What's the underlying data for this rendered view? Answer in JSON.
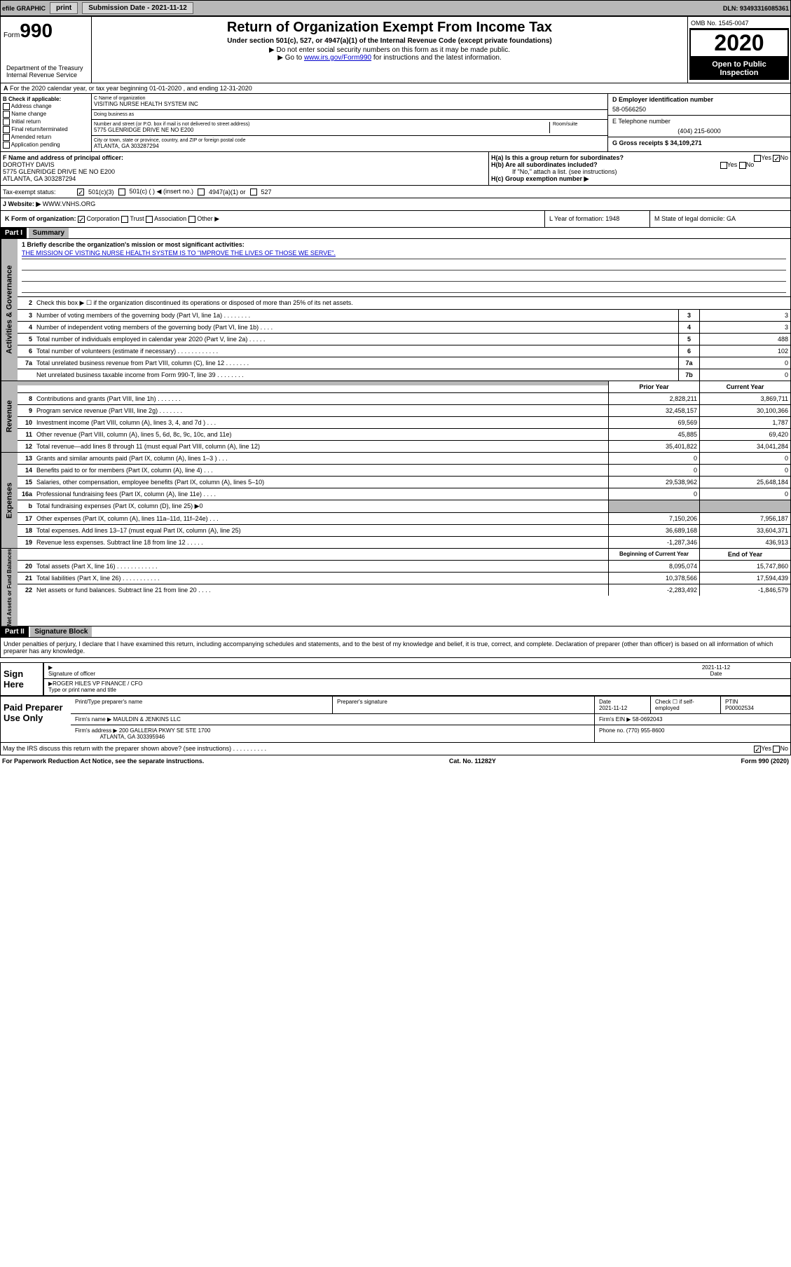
{
  "topbar": {
    "efile_label": "efile GRAPHIC",
    "print_btn": "print",
    "submission_label": "Submission Date - 2021-11-12",
    "dln_label": "DLN: 93493316085361"
  },
  "header": {
    "form_prefix": "Form",
    "form_number": "990",
    "title": "Return of Organization Exempt From Income Tax",
    "subtitle": "Under section 501(c), 527, or 4947(a)(1) of the Internal Revenue Code (except private foundations)",
    "note1": "▶ Do not enter social security numbers on this form as it may be made public.",
    "note2_pre": "▶ Go to ",
    "note2_link": "www.irs.gov/Form990",
    "note2_post": " for instructions and the latest information.",
    "dept": "Department of the Treasury\nInternal Revenue Service",
    "omb": "OMB No. 1545-0047",
    "year": "2020",
    "open_public": "Open to Public Inspection"
  },
  "row_a": "For the 2020 calendar year, or tax year beginning 01-01-2020    , and ending 12-31-2020",
  "checkboxes_b": {
    "label": "B Check if applicable:",
    "items": [
      "Address change",
      "Name change",
      "Initial return",
      "Final return/terminated",
      "Amended return",
      "Application pending"
    ]
  },
  "col_c": {
    "c_label": "C Name of organization",
    "org_name": "VISITING NURSE HEALTH SYSTEM INC",
    "dba_label": "Doing business as",
    "addr_label": "Number and street (or P.O. box if mail is not delivered to street address)",
    "room_label": "Room/suite",
    "addr": "5775 GLENRIDGE DRIVE NE NO E200",
    "city_label": "City or town, state or province, country, and ZIP or foreign postal code",
    "city": "ATLANTA, GA  303287294"
  },
  "col_d": {
    "d_label": "D Employer identification number",
    "ein": "58-0566250",
    "e_label": "E Telephone number",
    "phone": "(404) 215-6000",
    "g_label": "G Gross receipts $ 34,109,271"
  },
  "section_f": {
    "f_label": "F  Name and address of principal officer:",
    "officer_name": "DOROTHY DAVIS",
    "officer_addr1": "5775 GLENRIDGE DRIVE NE NO E200",
    "officer_addr2": "ATLANTA, GA  303287294",
    "ha_label": "H(a)  Is this a group return for subordinates?",
    "hb_label": "H(b)  Are all subordinates included?",
    "hb_note": "If \"No,\" attach a list. (see instructions)",
    "hc_label": "H(c)  Group exemption number ▶",
    "yes": "Yes",
    "no": "No"
  },
  "tax_row": {
    "label": "Tax-exempt status:",
    "opt1": "501(c)(3)",
    "opt2": "501(c) (  ) ◀ (insert no.)",
    "opt3": "4947(a)(1) or",
    "opt4": "527"
  },
  "website_row": {
    "label": "J    Website: ▶",
    "url": "WWW.VNHS.ORG"
  },
  "row_k": {
    "k_label": "K Form of organization:",
    "opts": [
      "Corporation",
      "Trust",
      "Association",
      "Other ▶"
    ],
    "l_label": "L Year of formation: 1948",
    "m_label": "M State of legal domicile: GA"
  },
  "part1": {
    "hdr": "Part I",
    "title": "Summary"
  },
  "governance": {
    "tab": "Activities & Governance",
    "line1_label": "1  Briefly describe the organization's mission or most significant activities:",
    "mission": "THE MISSION OF VISTING NURSE HEALTH SYSTEM IS TO \"IMPROVE THE LIVES OF THOSE WE SERVE\".",
    "line2": "Check this box ▶ ☐  if the organization discontinued its operations or disposed of more than 25% of its net assets.",
    "rows": [
      {
        "n": "3",
        "t": "Number of voting members of the governing body (Part VI, line 1a)   .    .    .    .    .    .    .    .",
        "b": "3",
        "v": "3"
      },
      {
        "n": "4",
        "t": "Number of independent voting members of the governing body (Part VI, line 1b)   .    .    .    .",
        "b": "4",
        "v": "3"
      },
      {
        "n": "5",
        "t": "Total number of individuals employed in calendar year 2020 (Part V, line 2a)   .    .    .    .    .",
        "b": "5",
        "v": "488"
      },
      {
        "n": "6",
        "t": "Total number of volunteers (estimate if necessary)   .    .    .    .    .    .    .    .    .    .    .    .",
        "b": "6",
        "v": "102"
      },
      {
        "n": "7a",
        "t": "Total unrelated business revenue from Part VIII, column (C), line 12   .    .    .    .    .    .    .",
        "b": "7a",
        "v": "0"
      },
      {
        "n": "",
        "t": "Net unrelated business taxable income from Form 990-T, line 39   .    .    .    .    .    .    .    .",
        "b": "7b",
        "v": "0"
      }
    ]
  },
  "revenue": {
    "tab": "Revenue",
    "hdr_prior": "Prior Year",
    "hdr_curr": "Current Year",
    "rows": [
      {
        "n": "8",
        "t": "Contributions and grants (Part VIII, line 1h)   .    .    .    .    .    .    .",
        "p": "2,828,211",
        "c": "3,869,711"
      },
      {
        "n": "9",
        "t": "Program service revenue (Part VIII, line 2g)   .    .    .    .    .    .    .",
        "p": "32,458,157",
        "c": "30,100,366"
      },
      {
        "n": "10",
        "t": "Investment income (Part VIII, column (A), lines 3, 4, and 7d )   .    .    .",
        "p": "69,569",
        "c": "1,787"
      },
      {
        "n": "11",
        "t": "Other revenue (Part VIII, column (A), lines 5, 6d, 8c, 9c, 10c, and 11e)",
        "p": "45,885",
        "c": "69,420"
      },
      {
        "n": "12",
        "t": "Total revenue—add lines 8 through 11 (must equal Part VIII, column (A), line 12)",
        "p": "35,401,822",
        "c": "34,041,284"
      }
    ]
  },
  "expenses": {
    "tab": "Expenses",
    "rows": [
      {
        "n": "13",
        "t": "Grants and similar amounts paid (Part IX, column (A), lines 1–3 )   .    .    .",
        "p": "0",
        "c": "0"
      },
      {
        "n": "14",
        "t": "Benefits paid to or for members (Part IX, column (A), line 4)   .    .    .",
        "p": "0",
        "c": "0"
      },
      {
        "n": "15",
        "t": "Salaries, other compensation, employee benefits (Part IX, column (A), lines 5–10)",
        "p": "29,538,962",
        "c": "25,648,184"
      },
      {
        "n": "16a",
        "t": "Professional fundraising fees (Part IX, column (A), line 11e)   .    .    .    .",
        "p": "0",
        "c": "0"
      },
      {
        "n": "b",
        "t": "Total fundraising expenses (Part IX, column (D), line 25) ▶0",
        "p": "",
        "c": "",
        "grey": true
      },
      {
        "n": "17",
        "t": "Other expenses (Part IX, column (A), lines 11a–11d, 11f–24e)   .    .    .",
        "p": "7,150,206",
        "c": "7,956,187"
      },
      {
        "n": "18",
        "t": "Total expenses. Add lines 13–17 (must equal Part IX, column (A), line 25)",
        "p": "36,689,168",
        "c": "33,604,371"
      },
      {
        "n": "19",
        "t": "Revenue less expenses. Subtract line 18 from line 12   .    .    .    .    .",
        "p": "-1,287,346",
        "c": "436,913"
      }
    ]
  },
  "netassets": {
    "tab": "Net Assets or Fund Balances",
    "hdr_begin": "Beginning of Current Year",
    "hdr_end": "End of Year",
    "rows": [
      {
        "n": "20",
        "t": "Total assets (Part X, line 16)   .    .    .    .    .    .    .    .    .    .    .    .",
        "p": "8,095,074",
        "c": "15,747,860"
      },
      {
        "n": "21",
        "t": "Total liabilities (Part X, line 26)   .    .    .    .    .    .    .    .    .    .    .",
        "p": "10,378,566",
        "c": "17,594,439"
      },
      {
        "n": "22",
        "t": "Net assets or fund balances. Subtract line 21 from line 20   .    .    .    .",
        "p": "-2,283,492",
        "c": "-1,846,579"
      }
    ]
  },
  "part2": {
    "hdr": "Part II",
    "title": "Signature Block",
    "penalty": "Under penalties of perjury, I declare that I have examined this return, including accompanying schedules and statements, and to the best of my knowledge and belief, it is true, correct, and complete. Declaration of preparer (other than officer) is based on all information of which preparer has any knowledge."
  },
  "sign": {
    "label": "Sign Here",
    "sig_officer": "Signature of officer",
    "date": "2021-11-12",
    "date_label": "Date",
    "name": "ROGER HILES VP FINANCE / CFO",
    "name_label": "Type or print name and title"
  },
  "preparer": {
    "label": "Paid Preparer Use Only",
    "h1": "Print/Type preparer's name",
    "h2": "Preparer's signature",
    "h3_label": "Date",
    "h3": "2021-11-12",
    "h4_label": "Check ☐  if self-employed",
    "h5_label": "PTIN",
    "ptin": "P00002534",
    "firm_label": "Firm's name    ▶",
    "firm": "MAULDIN & JENKINS LLC",
    "ein_label": "Firm's EIN ▶",
    "ein": "58-0692043",
    "addr_label": "Firm's address ▶",
    "addr1": "200 GALLERIA PKWY SE STE 1700",
    "addr2": "ATLANTA, GA  303395946",
    "phone_label": "Phone no.",
    "phone": "(770) 955-8600"
  },
  "footer": {
    "discuss": "May the IRS discuss this return with the preparer shown above? (see instructions)   .    .    .    .    .    .    .    .    .    .",
    "yes": "Yes",
    "no": "No",
    "paperwork": "For Paperwork Reduction Act Notice, see the separate instructions.",
    "cat": "Cat. No. 11282Y",
    "form": "Form 990 (2020)"
  }
}
